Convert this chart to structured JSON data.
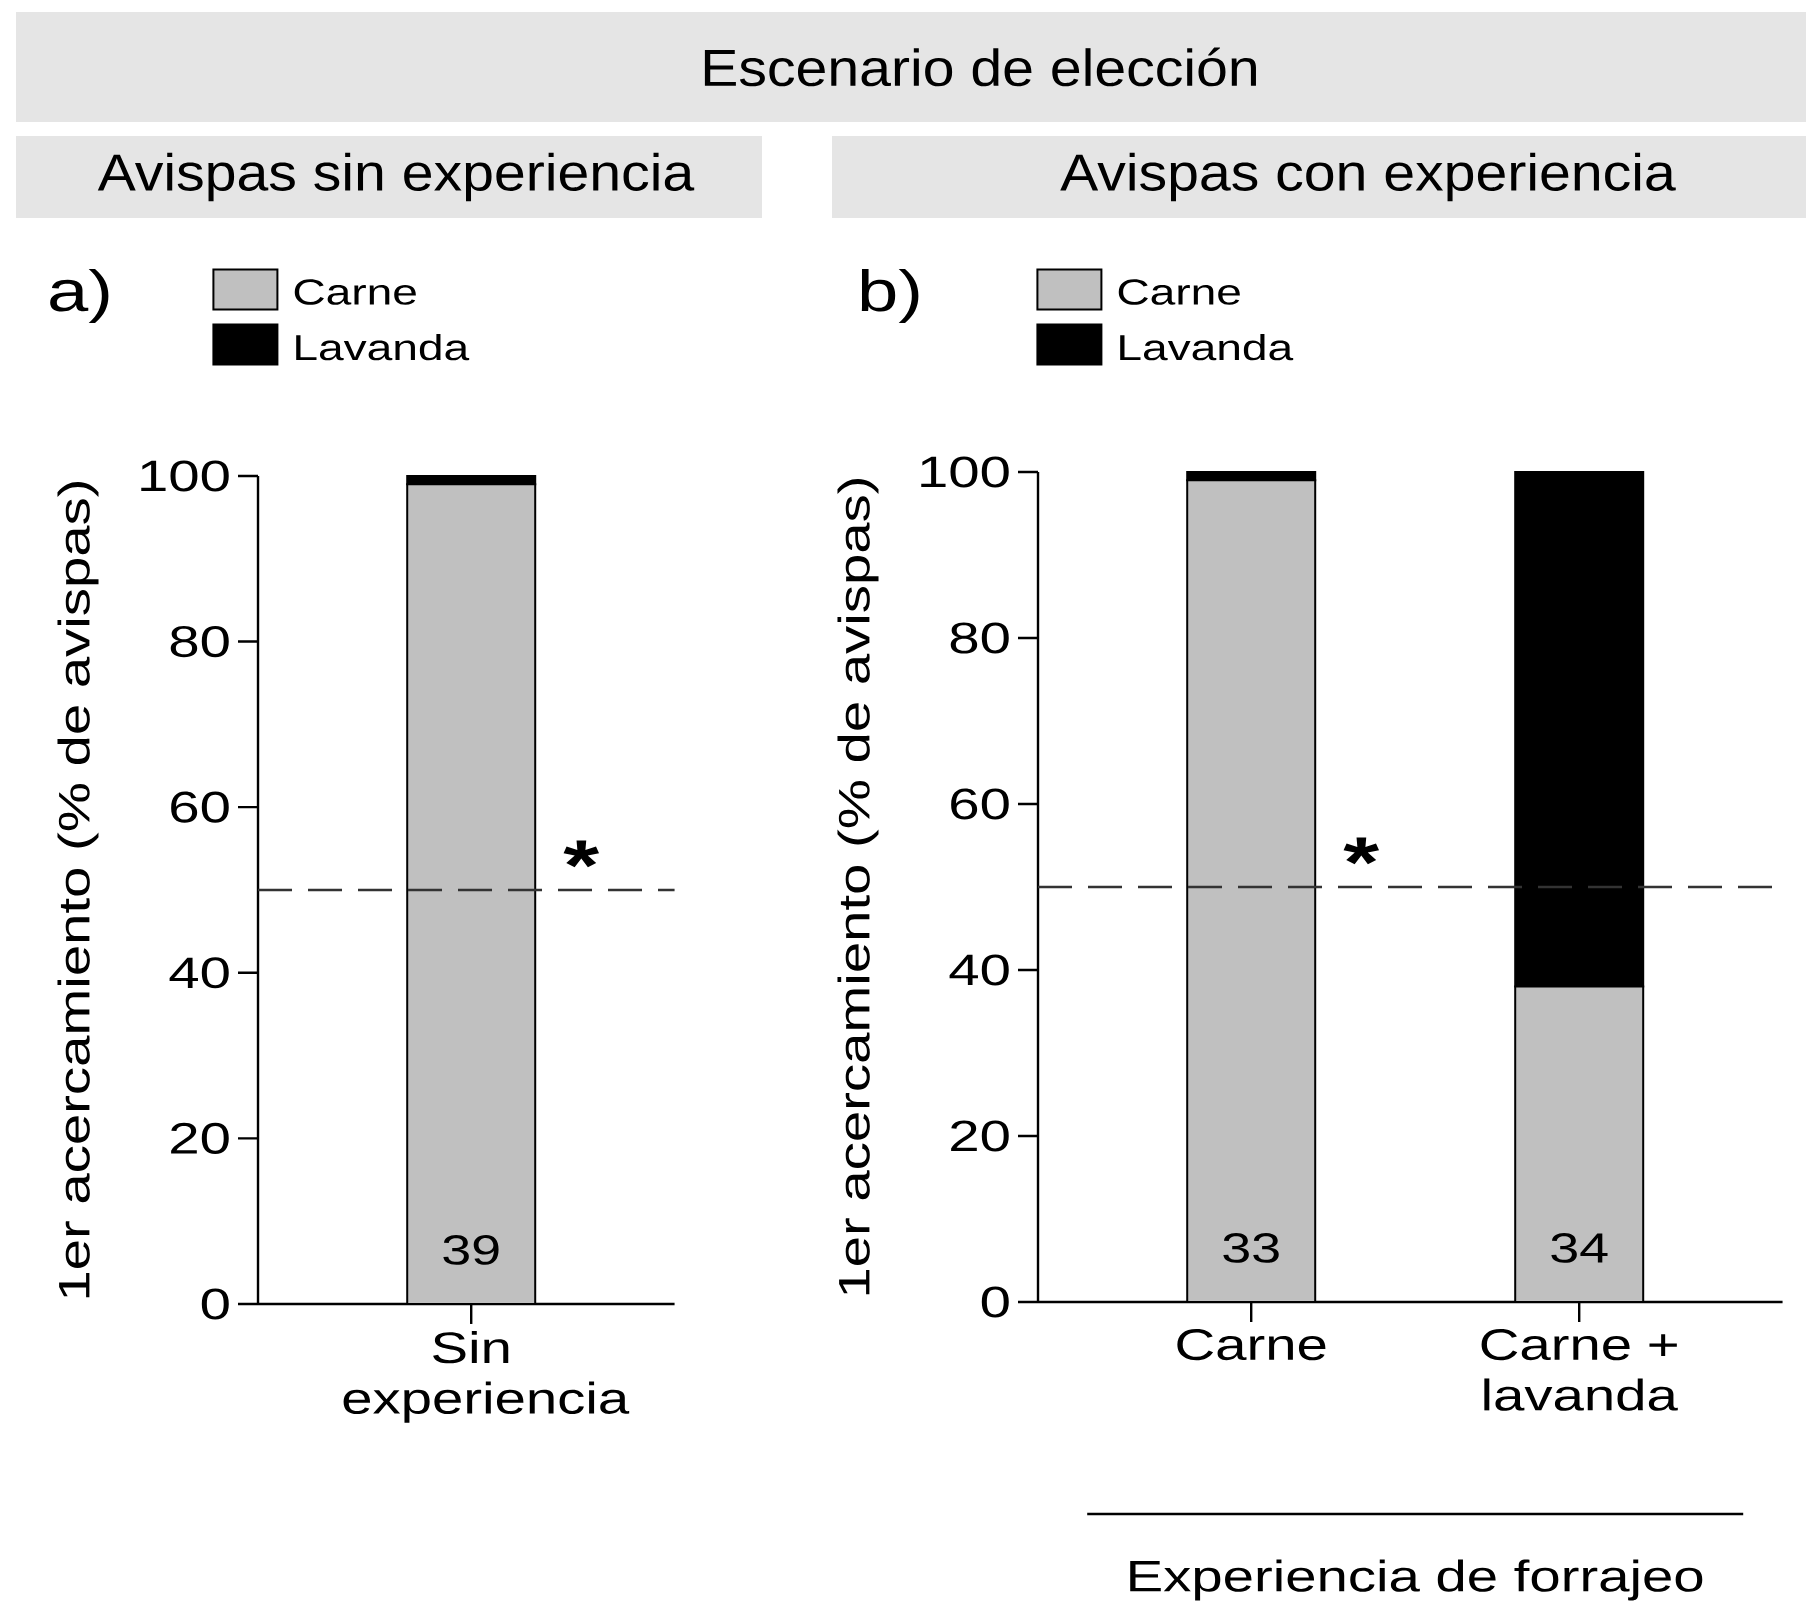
{
  "chart_data": [
    {
      "type": "bar",
      "stacked": true,
      "subtitle": "Avispas sin experiencia",
      "ylabel": "1er acercamiento (% de avispas)",
      "categories": [
        "Sin experiencia"
      ],
      "series": [
        {
          "name": "Carne",
          "color": "#c0c0c0",
          "values": [
            99
          ]
        },
        {
          "name": "Lavanda",
          "color": "#000000",
          "values": [
            1
          ]
        }
      ],
      "ylim": [
        0,
        100
      ],
      "yticks": [
        0,
        20,
        40,
        60,
        80,
        100
      ],
      "legend": "top left",
      "ref_lines": [
        {
          "axis": "y",
          "value": 50,
          "line_style": "dashed",
          "color": "#333333"
        }
      ],
      "annotations": [
        "a)",
        "*",
        "39"
      ]
    },
    {
      "type": "bar",
      "stacked": true,
      "title": "Escenario de elección",
      "subtitle": "Avispas con experiencia",
      "ylabel": "1er acercamiento (% de avispas)",
      "xlabel": "Experiencia de forrajeo",
      "categories": [
        "Carne",
        "Carne + lavanda"
      ],
      "series": [
        {
          "name": "Carne",
          "color": "#c0c0c0",
          "values": [
            99,
            38
          ]
        },
        {
          "name": "Lavanda",
          "color": "#000000",
          "values": [
            1,
            62
          ]
        }
      ],
      "ylim": [
        0,
        100
      ],
      "yticks": [
        0,
        20,
        40,
        60,
        80,
        100
      ],
      "legend": "top left",
      "ref_lines": [
        {
          "axis": "y",
          "value": 50,
          "line_style": "dashed",
          "color": "#333333"
        }
      ],
      "annotations": [
        "b)",
        "*",
        "33",
        "34"
      ]
    }
  ]
}
